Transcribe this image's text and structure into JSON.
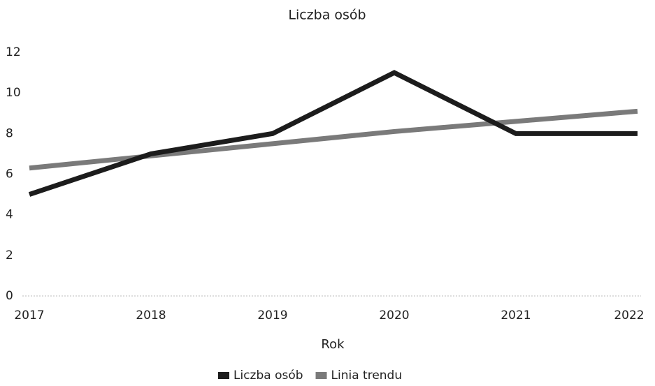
{
  "chart_data": {
    "type": "line",
    "title": "Liczba osób",
    "x_label": "Rok",
    "categories": [
      "2017",
      "2018",
      "2019",
      "2020",
      "2021",
      "2022"
    ],
    "series": [
      {
        "name": "Liczba osób",
        "color": "#1c1c1c",
        "values": [
          5,
          7,
          8,
          11,
          8,
          8
        ]
      },
      {
        "name": "Linia trendu",
        "color": "#7a7a7a",
        "values": [
          6.3,
          6.9,
          7.5,
          8.1,
          8.6,
          9.1
        ]
      }
    ],
    "ylim": [
      0,
      12
    ],
    "yticks": [
      0,
      2,
      4,
      6,
      8,
      10,
      12
    ],
    "grid": false,
    "legend": "bottom"
  }
}
